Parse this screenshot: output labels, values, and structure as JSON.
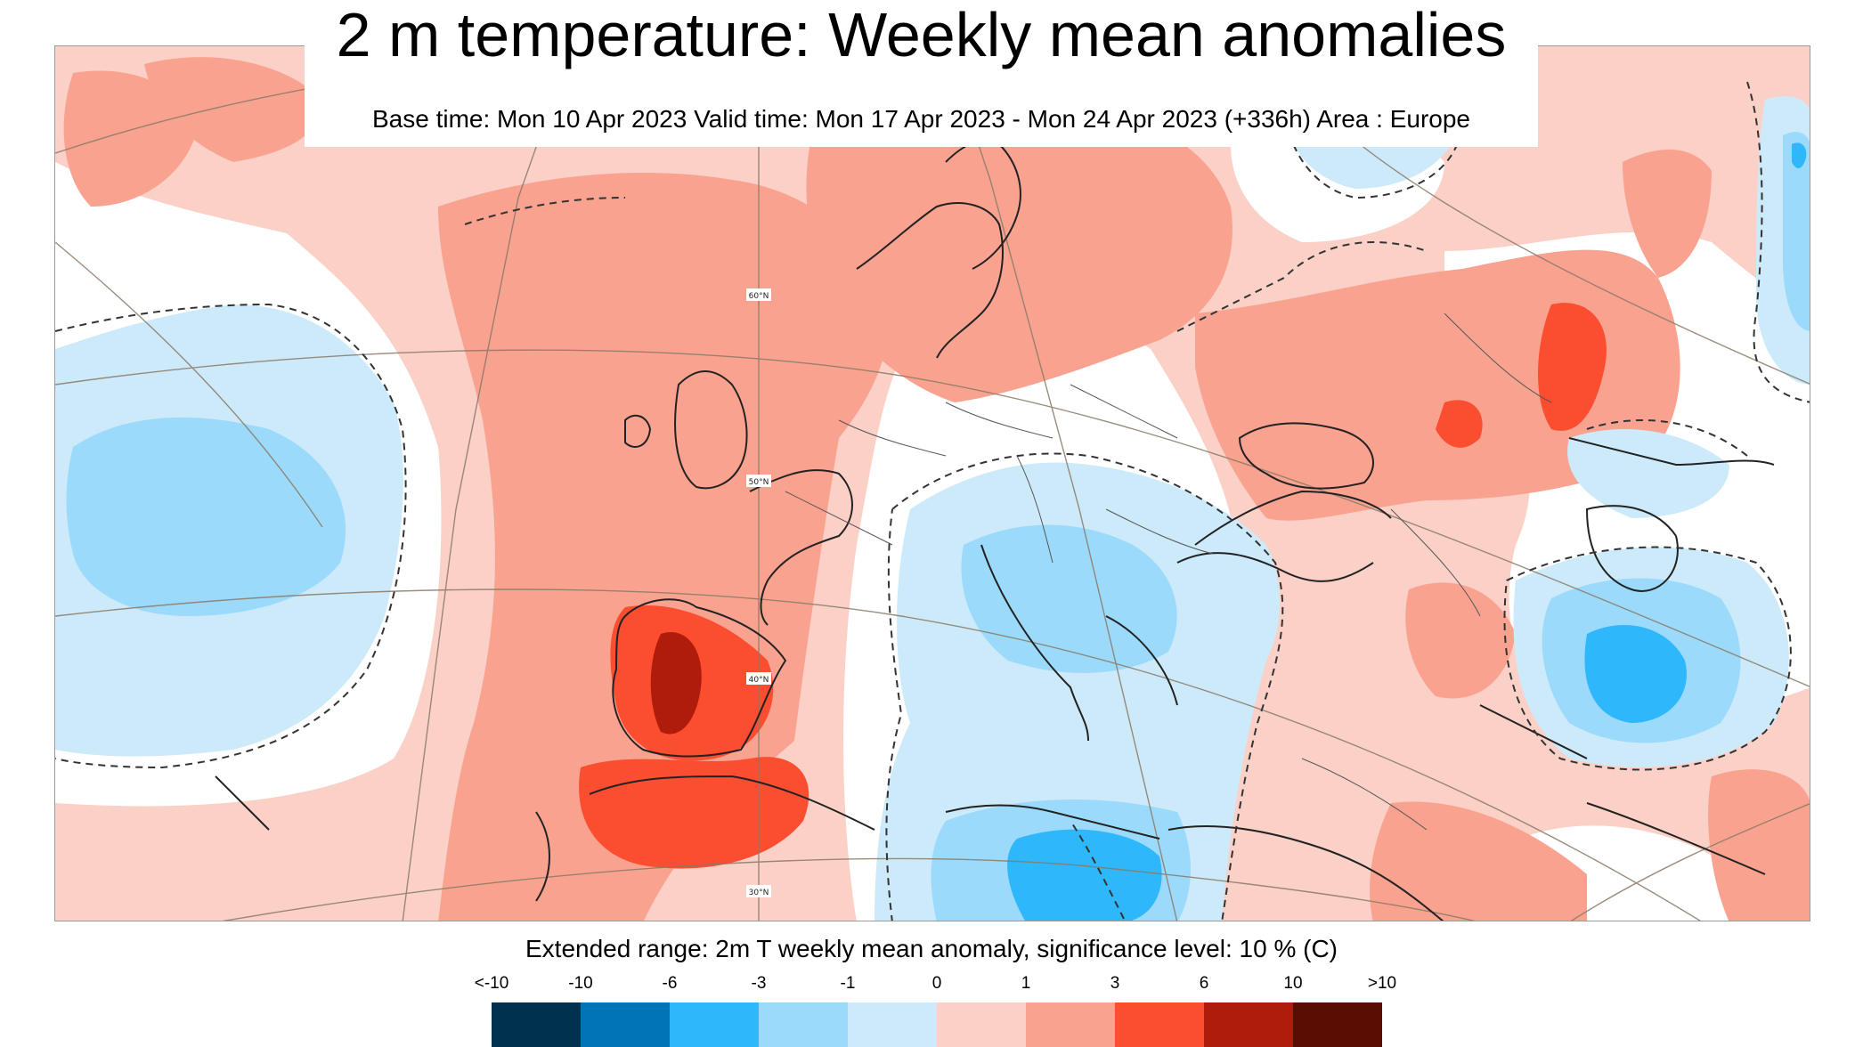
{
  "title": "2 m temperature: Weekly mean anomalies",
  "subtitle": "Base time: Mon 10 Apr 2023 Valid time: Mon 17 Apr 2023 - Mon 24 Apr 2023 (+336h) Area : Europe",
  "map": {
    "area": "Europe",
    "ocean_background_color": "#fbd0c7",
    "latitude_labels": [
      "60°N",
      "50°N",
      "40°N",
      "30°N"
    ]
  },
  "legend": {
    "title": "Extended range: 2m T weekly mean anomaly, significance level: 10 % (C)",
    "tick_labels": [
      "<-10",
      "-10",
      "-6",
      "-3",
      "-1",
      "0",
      "1",
      "3",
      "6",
      "10",
      ">10"
    ],
    "classes": [
      {
        "range": "<-10 to -10",
        "color": "#00324f"
      },
      {
        "range": "-10 to -6",
        "color": "#0074b6"
      },
      {
        "range": "-6 to -3",
        "color": "#2eb7fb"
      },
      {
        "range": "-3 to -1",
        "color": "#9cdafb"
      },
      {
        "range": "-1 to 0",
        "color": "#cdeafb"
      },
      {
        "range": "0 to 1",
        "color": "#fbd0c7"
      },
      {
        "range": "1 to 3",
        "color": "#f9a290"
      },
      {
        "range": "3 to 6",
        "color": "#fb4d30"
      },
      {
        "range": "6 to 10",
        "color": "#af1c0b"
      },
      {
        "range": "10 to >10",
        "color": "#590d03"
      }
    ]
  }
}
